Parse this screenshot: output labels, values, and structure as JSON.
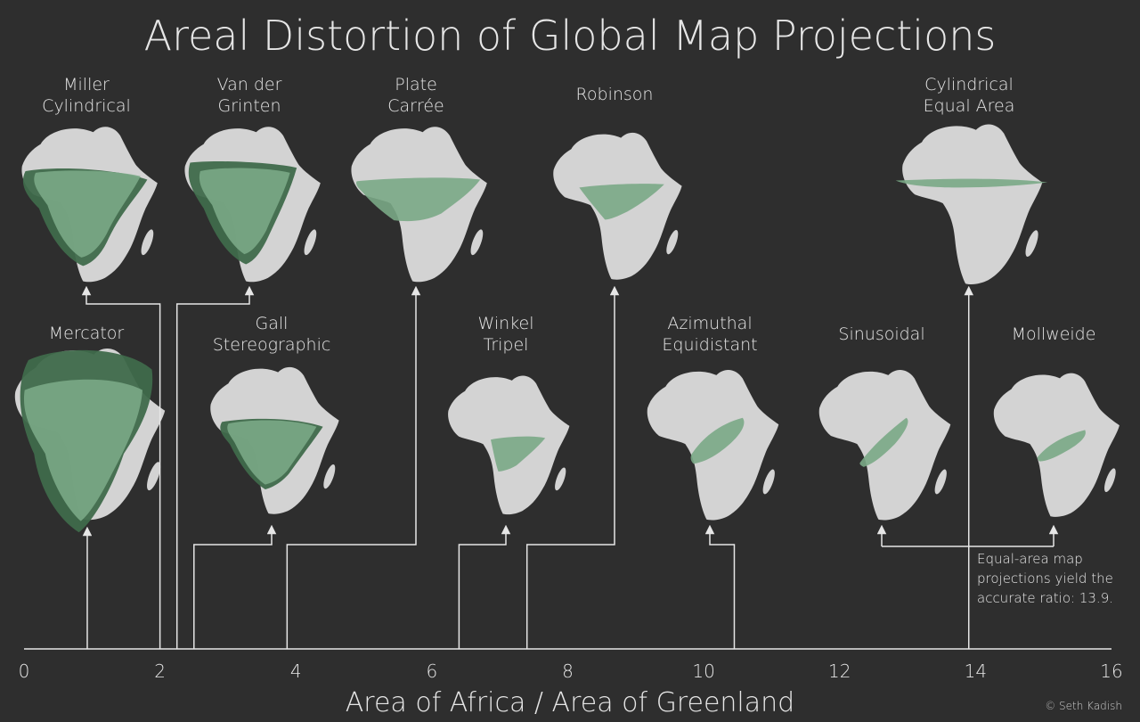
{
  "title": "Areal Distortion of Global Map Projections",
  "x_axis": {
    "label": "Area of Africa / Area of Greenland",
    "ticks": [
      "0",
      "2",
      "4",
      "6",
      "8",
      "10",
      "12",
      "14",
      "16"
    ],
    "range": [
      0,
      16
    ]
  },
  "note": {
    "lines": [
      "Equal-area map",
      "projections yield the",
      "accurate ratio: 13.9."
    ]
  },
  "credit": "© Seth Kadish",
  "colors": {
    "background": "#2e2e2e",
    "africa": "#d3d3d3",
    "greenland_overlay": "#7aa886",
    "greenland_beyond": "#3f6a4b",
    "line": "#e6e6e6"
  },
  "projections": [
    {
      "name_lines": [
        "Mercator"
      ],
      "ratio": 0.93,
      "row": "bottom"
    },
    {
      "name_lines": [
        "Miller",
        "Cylindrical"
      ],
      "ratio": 2.0,
      "row": "top"
    },
    {
      "name_lines": [
        "Van der",
        "Grinten"
      ],
      "ratio": 2.25,
      "row": "top"
    },
    {
      "name_lines": [
        "Gall",
        "Stereographic"
      ],
      "ratio": 2.5,
      "row": "bottom"
    },
    {
      "name_lines": [
        "Plate",
        "Carrée"
      ],
      "ratio": 3.87,
      "row": "top"
    },
    {
      "name_lines": [
        "Winkel",
        "Tripel"
      ],
      "ratio": 6.4,
      "row": "bottom"
    },
    {
      "name_lines": [
        "Robinson"
      ],
      "ratio": 7.4,
      "row": "top"
    },
    {
      "name_lines": [
        "Azimuthal",
        "Equidistant"
      ],
      "ratio": 10.45,
      "row": "bottom"
    },
    {
      "name_lines": [
        "Sinusoidal"
      ],
      "ratio": 13.9,
      "row": "bottom"
    },
    {
      "name_lines": [
        "Cylindrical",
        "Equal Area"
      ],
      "ratio": 13.9,
      "row": "top"
    },
    {
      "name_lines": [
        "Mollweide"
      ],
      "ratio": 13.9,
      "row": "bottom"
    }
  ],
  "chart_data": {
    "type": "scatter",
    "title": "Areal Distortion of Global Map Projections",
    "xlabel": "Area of Africa / Area of Greenland",
    "xlim": [
      0,
      16
    ],
    "points": [
      {
        "name": "Mercator",
        "x": 0.93
      },
      {
        "name": "Miller Cylindrical",
        "x": 2.0
      },
      {
        "name": "Van der Grinten",
        "x": 2.25
      },
      {
        "name": "Gall Stereographic",
        "x": 2.5
      },
      {
        "name": "Plate Carrée",
        "x": 3.87
      },
      {
        "name": "Winkel Tripel",
        "x": 6.4
      },
      {
        "name": "Robinson",
        "x": 7.4
      },
      {
        "name": "Azimuthal Equidistant",
        "x": 10.45
      },
      {
        "name": "Sinusoidal",
        "x": 13.9
      },
      {
        "name": "Cylindrical Equal Area",
        "x": 13.9
      },
      {
        "name": "Mollweide",
        "x": 13.9
      }
    ]
  }
}
